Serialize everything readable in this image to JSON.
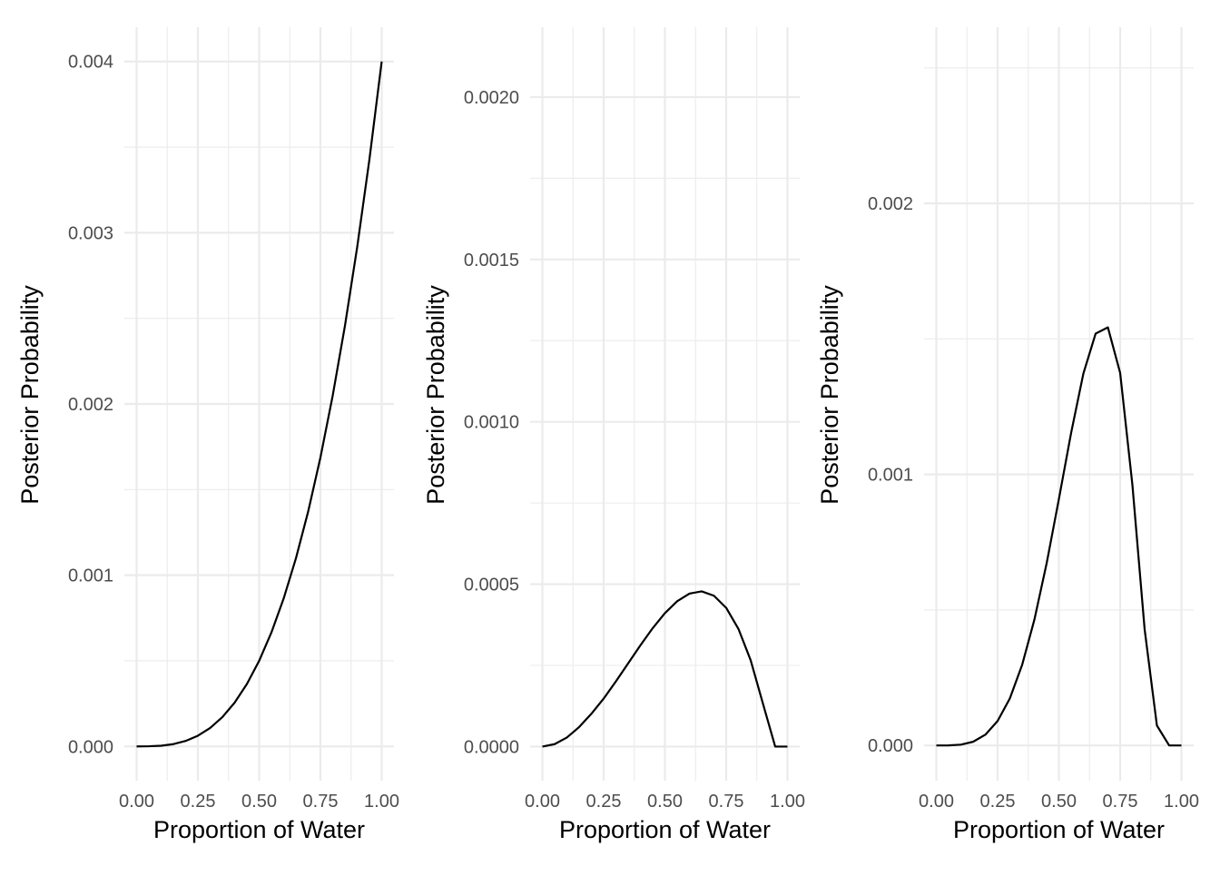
{
  "chart_data": [
    {
      "type": "line",
      "xlabel": "Proportion of Water",
      "ylabel": "Posterior Probability",
      "xlim": [
        0,
        1
      ],
      "ylim": [
        -0.0002,
        0.0042
      ],
      "x_ticks": [
        0,
        0.25,
        0.5,
        0.75,
        1
      ],
      "x_tick_labels": [
        "0.00",
        "0.25",
        "0.50",
        "0.75",
        "1.00"
      ],
      "y_ticks": [
        0,
        0.001,
        0.002,
        0.003,
        0.004
      ],
      "y_tick_labels": [
        "0.000",
        "0.001",
        "0.002",
        "0.003",
        "0.004"
      ],
      "grid": true,
      "series": [
        {
          "x": [
            0,
            0.05,
            0.1,
            0.15,
            0.2,
            0.25,
            0.3,
            0.35,
            0.4,
            0.45,
            0.5,
            0.55,
            0.6,
            0.65,
            0.7,
            0.75,
            0.8,
            0.85,
            0.9,
            0.95,
            1.0
          ],
          "values": [
            0,
            1e-06,
            4e-06,
            1.35e-05,
            3.2e-05,
            6.25e-05,
            0.000108,
            0.0001715,
            0.000256,
            0.0003645,
            0.0005,
            0.0006655,
            0.000864,
            0.0010985,
            0.001372,
            0.0016875,
            0.002048,
            0.0024565,
            0.002916,
            0.0034295,
            0.004
          ],
          "color": "#000000"
        }
      ]
    },
    {
      "type": "line",
      "xlabel": "Proportion of Water",
      "ylabel": "Posterior Probability",
      "xlim": [
        0,
        1
      ],
      "ylim": [
        -0.000105,
        0.002215
      ],
      "x_ticks": [
        0,
        0.25,
        0.5,
        0.75,
        1
      ],
      "x_tick_labels": [
        "0.00",
        "0.25",
        "0.50",
        "0.75",
        "1.00"
      ],
      "y_ticks": [
        0,
        0.0005,
        0.001,
        0.0015,
        0.002
      ],
      "y_tick_labels": [
        "0.0000",
        "0.0005",
        "0.0010",
        "0.0015",
        "0.0020"
      ],
      "grid": true,
      "series": [
        {
          "x": [
            0,
            0.05,
            0.1,
            0.15,
            0.2,
            0.25,
            0.3,
            0.35,
            0.4,
            0.45,
            0.5,
            0.55,
            0.6,
            0.65,
            0.7,
            0.75,
            0.8,
            0.85,
            0.9,
            0.95,
            1.0
          ],
          "values": [
            0,
            7.5e-06,
            2.8e-05,
            6.01e-05,
            0.000101,
            0.0001477,
            0.0002006,
            0.0002563,
            0.0003119,
            0.0003645,
            0.0004108,
            0.0004475,
            0.0004711,
            0.000478,
            0.0004645,
            0.0004272,
            0.0003624,
            0.0002655,
            0.0001322,
            1e-07,
            0
          ],
          "color": "#000000"
        }
      ]
    },
    {
      "type": "line",
      "xlabel": "Proportion of Water",
      "ylabel": "Posterior Probability",
      "xlim": [
        0,
        1
      ],
      "ylim": [
        -0.00013,
        0.00265
      ],
      "x_ticks": [
        0,
        0.25,
        0.5,
        0.75,
        1
      ],
      "x_tick_labels": [
        "0.00",
        "0.25",
        "0.50",
        "0.75",
        "1.00"
      ],
      "y_ticks": [
        0,
        0.001,
        0.002
      ],
      "y_tick_labels": [
        "0.000",
        "0.001",
        "0.002"
      ],
      "grid": true,
      "series": [
        {
          "x": [
            0,
            0.05,
            0.1,
            0.15,
            0.2,
            0.25,
            0.3,
            0.35,
            0.4,
            0.45,
            0.5,
            0.55,
            0.6,
            0.65,
            0.7,
            0.75,
            0.8,
            0.85,
            0.9,
            0.95,
            1.0
          ],
          "values": [
            0,
            1e-07,
            2.9e-06,
            1.36e-05,
            3.97e-05,
            9.03e-05,
            0.0001736,
            0.0002969,
            0.0004638,
            0.0006716,
            0.0009091,
            0.0011536,
            0.0013722,
            0.0015197,
            0.0015425,
            0.0013747,
            0.0009615,
            0.0004276,
            7.35e-05,
            1e-07,
            0
          ],
          "color": "#000000"
        }
      ]
    }
  ]
}
